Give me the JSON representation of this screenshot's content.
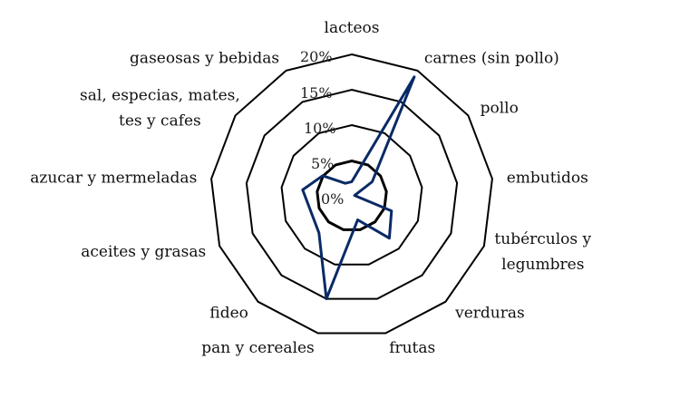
{
  "chart_data": {
    "type": "radar",
    "categories": [
      [
        "lacteos"
      ],
      [
        "carnes (sin pollo)"
      ],
      [
        "pollo"
      ],
      [
        "embutidos"
      ],
      [
        "tubérculos y",
        "legumbres"
      ],
      [
        "verduras"
      ],
      [
        "frutas"
      ],
      [
        "pan y cereales"
      ],
      [
        "fideo"
      ],
      [
        "aceites y grasas"
      ],
      [
        "azucar y mermeladas"
      ],
      [
        "sal, especias, mates,",
        "tes y cafes"
      ],
      [
        "gaseosas y bebidas"
      ]
    ],
    "category_names": [
      "lacteos",
      "carnes (sin pollo)",
      "pollo",
      "embutidos",
      "tubérculos y legumbres",
      "verduras",
      "frutas",
      "pan y cereales",
      "fideo",
      "aceites y grasas",
      "azucar y mermeladas",
      "sal, especias, mates, tes y cafes",
      "gaseosas y bebidas"
    ],
    "tick_labels": [
      "0%",
      "5%",
      "10%",
      "15%",
      "20%"
    ],
    "ticks": [
      0,
      5,
      10,
      15,
      20
    ],
    "rlim": [
      0,
      20
    ],
    "series": [
      {
        "values": [
          2.0,
          19.0,
          3.5,
          0.4,
          6.0,
          8.0,
          3.5,
          15.0,
          7.0,
          6.2,
          7.0,
          5.0,
          2.0
        ]
      }
    ],
    "colors": {
      "series": "#0a2a66",
      "grid": "#000000"
    },
    "grid": true,
    "legend": "none"
  }
}
